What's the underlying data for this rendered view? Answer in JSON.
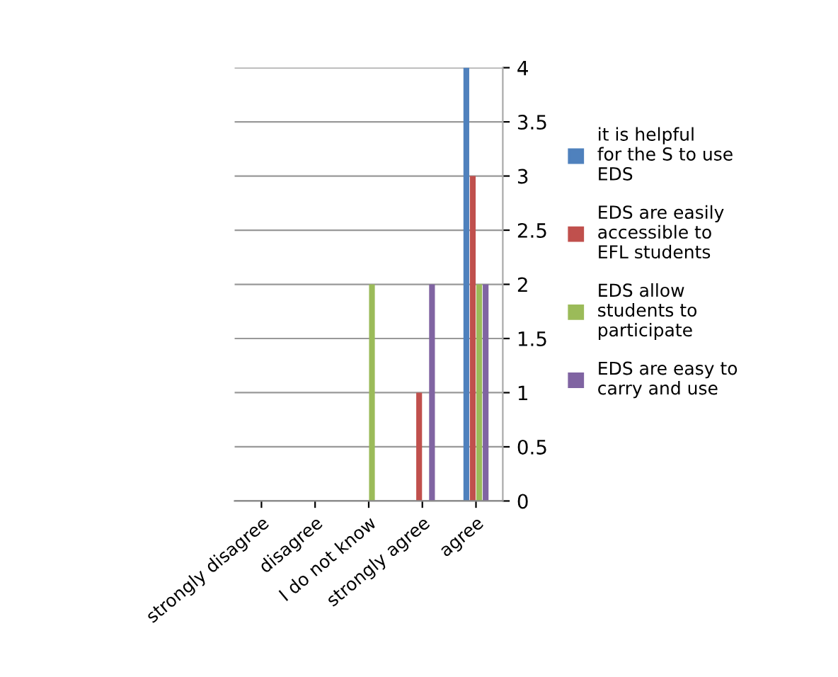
{
  "chart_data": {
    "type": "bar",
    "categories": [
      "strongly disagree",
      "disagree",
      "I do not know",
      "strongly agree",
      "agree"
    ],
    "series": [
      {
        "name": "it is helpful for the S to use EDS",
        "color": "#4f81bd",
        "values": [
          0,
          0,
          0,
          0,
          4
        ]
      },
      {
        "name": "EDS are easily accessible to EFL students",
        "color": "#c0504d",
        "values": [
          0,
          0,
          0,
          1,
          3
        ]
      },
      {
        "name": "EDS allow students to participate",
        "color": "#9bbb59",
        "values": [
          0,
          0,
          2,
          0,
          2
        ]
      },
      {
        "name": "EDS are easy to carry and use",
        "color": "#8064a2",
        "values": [
          0,
          0,
          0,
          2,
          2
        ]
      }
    ],
    "ylim": [
      0,
      4
    ],
    "yticks": [
      0,
      0.5,
      1,
      1.5,
      2,
      2.5,
      3,
      3.5,
      4
    ],
    "grid": "y",
    "legend": "right"
  }
}
